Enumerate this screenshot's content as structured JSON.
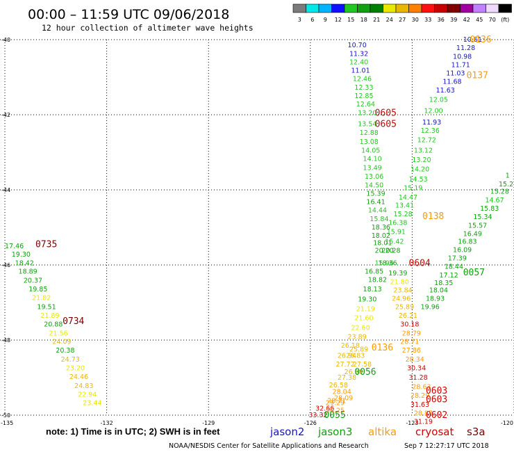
{
  "title": "00:00 – 11:59 UTC 09/06/2018",
  "subtitle": "12 hour collection of altimeter wave heights",
  "colorbar": {
    "labels": [
      "3",
      "6",
      "9",
      "12",
      "15",
      "18",
      "21",
      "24",
      "27",
      "30",
      "33",
      "36",
      "39",
      "42",
      "45",
      "70",
      "(ft)"
    ],
    "colors": [
      "#7b7b7b",
      "#00e8e8",
      "#00b4ff",
      "#1010ff",
      "#20c820",
      "#10a010",
      "#008000",
      "#e8e800",
      "#e8b800",
      "#ff7f00",
      "#ff1010",
      "#c80000",
      "#800000",
      "#a000a0",
      "#c080ff",
      "#f0d8ff",
      "#000000"
    ]
  },
  "note": "note:  1) Time is in UTC;  2) SWH is in feet",
  "satellites": [
    {
      "name": "jason2",
      "color": "#1414c8"
    },
    {
      "name": "jason3",
      "color": "#10a010"
    },
    {
      "name": "altika",
      "color": "#ff9a00"
    },
    {
      "name": "cryosat",
      "color": "#d20000"
    },
    {
      "name": "s3a",
      "color": "#7a0000"
    }
  ],
  "footer_left": "NOAA/NESDIS Center for Satellite Applications and Research",
  "footer_right": "Sep  7 12:27:17 UTC 2018",
  "chart_data": {
    "type": "scatter",
    "title": "00:00 – 11:59 UTC 09/06/2018",
    "xlabel": "",
    "ylabel": "",
    "xlim": [
      -135,
      -120
    ],
    "ylim": [
      -50,
      -40
    ],
    "grid": true,
    "x_ticks": [
      -135,
      -132,
      -129,
      -126,
      -123,
      -120
    ],
    "y_ticks": [
      -40,
      -42,
      -44,
      -46,
      -48,
      -50
    ],
    "x_tick_labels": [
      "-135",
      "-132",
      "-129",
      "-126",
      "-123",
      "-120"
    ],
    "y_tick_labels": [
      "-40",
      "-42",
      "-44",
      "-46",
      "-48",
      "-50"
    ],
    "passes": [
      {
        "label": "0136",
        "color": "#ff9a00",
        "x": -121.3,
        "y": -40.0
      },
      {
        "label": "0137",
        "color": "#ff9a00",
        "x": -121.4,
        "y": -40.95
      },
      {
        "label": "0605",
        "color": "#d20000",
        "x": -124.1,
        "y": -41.95
      },
      {
        "label": "0605",
        "color": "#d20000",
        "x": -124.1,
        "y": -42.25
      },
      {
        "label": "0138",
        "color": "#ff9a00",
        "x": -122.7,
        "y": -44.7
      },
      {
        "label": "0735",
        "color": "#7a0000",
        "x": -134.1,
        "y": -45.45
      },
      {
        "label": "0604",
        "color": "#d20000",
        "x": -123.1,
        "y": -45.95
      },
      {
        "label": "0057",
        "color": "#10a010",
        "x": -121.5,
        "y": -46.2
      },
      {
        "label": "0734",
        "color": "#7a0000",
        "x": -133.3,
        "y": -47.5
      },
      {
        "label": "0136",
        "color": "#ff9a00",
        "x": -124.2,
        "y": -48.2
      },
      {
        "label": "0056",
        "color": "#10a010",
        "x": -124.7,
        "y": -48.85
      },
      {
        "label": "0603",
        "color": "#d20000",
        "x": -122.6,
        "y": -49.35
      },
      {
        "label": "0603",
        "color": "#d20000",
        "x": -122.6,
        "y": -49.58
      },
      {
        "label": "0602",
        "color": "#d20000",
        "x": -122.6,
        "y": -50.0
      },
      {
        "label": "0055",
        "color": "#10a010",
        "x": -125.6,
        "y": -50.0
      }
    ],
    "points": [
      {
        "v": "10.61",
        "x": -121.5,
        "y": -40.0,
        "c": "#1414c8"
      },
      {
        "v": "11.28",
        "x": -121.7,
        "y": -40.22,
        "c": "#1414c8"
      },
      {
        "v": "10.98",
        "x": -121.8,
        "y": -40.45,
        "c": "#1414c8"
      },
      {
        "v": "11.71",
        "x": -121.85,
        "y": -40.68,
        "c": "#1414c8"
      },
      {
        "v": "11.03",
        "x": -122.0,
        "y": -40.9,
        "c": "#1414c8"
      },
      {
        "v": "11.68",
        "x": -122.1,
        "y": -41.12,
        "c": "#1414c8"
      },
      {
        "v": "11.63",
        "x": -122.3,
        "y": -41.35,
        "c": "#1414c8"
      },
      {
        "v": "12.05",
        "x": -122.5,
        "y": -41.6,
        "c": "#20c820"
      },
      {
        "v": "12.00",
        "x": -122.65,
        "y": -41.9,
        "c": "#20c820"
      },
      {
        "v": "11.93",
        "x": -122.7,
        "y": -42.2,
        "c": "#1414c8"
      },
      {
        "v": "12.36",
        "x": -122.75,
        "y": -42.43,
        "c": "#20c820"
      },
      {
        "v": "12.72",
        "x": -122.85,
        "y": -42.68,
        "c": "#20c820"
      },
      {
        "v": "13.12",
        "x": -122.95,
        "y": -42.95,
        "c": "#20c820"
      },
      {
        "v": "13.20",
        "x": -123.0,
        "y": -43.2,
        "c": "#20c820"
      },
      {
        "v": "14.20",
        "x": -123.05,
        "y": -43.45,
        "c": "#20c820"
      },
      {
        "v": "14.53",
        "x": -123.1,
        "y": -43.72,
        "c": "#20c820"
      },
      {
        "v": "15.19",
        "x": -123.25,
        "y": -43.95,
        "c": "#20c820"
      },
      {
        "v": "14.47",
        "x": -123.4,
        "y": -44.2,
        "c": "#20c820"
      },
      {
        "v": "13.41",
        "x": -123.5,
        "y": -44.42,
        "c": "#20c820"
      },
      {
        "v": "15.28",
        "x": -123.55,
        "y": -44.65,
        "c": "#20c820"
      },
      {
        "v": "16.38",
        "x": -123.7,
        "y": -44.88,
        "c": "#20c820"
      },
      {
        "v": "15.91",
        "x": -123.75,
        "y": -45.12,
        "c": "#20c820"
      },
      {
        "v": "15.42",
        "x": -123.8,
        "y": -45.38,
        "c": "#20c820"
      },
      {
        "v": "20.28",
        "x": -123.9,
        "y": -45.62,
        "c": "#10a010"
      },
      {
        "v": "10.70",
        "x": -124.9,
        "y": -40.15,
        "c": "#1414c8"
      },
      {
        "v": "11.32",
        "x": -124.85,
        "y": -40.38,
        "c": "#1414c8"
      },
      {
        "v": "12.40",
        "x": -124.85,
        "y": -40.6,
        "c": "#20c820"
      },
      {
        "v": "11.01",
        "x": -124.8,
        "y": -40.82,
        "c": "#1414c8"
      },
      {
        "v": "12.46",
        "x": -124.75,
        "y": -41.05,
        "c": "#20c820"
      },
      {
        "v": "12.33",
        "x": -124.7,
        "y": -41.28,
        "c": "#20c820"
      },
      {
        "v": "12.85",
        "x": -124.7,
        "y": -41.5,
        "c": "#20c820"
      },
      {
        "v": "12.64",
        "x": -124.65,
        "y": -41.72,
        "c": "#20c820"
      },
      {
        "v": "13.20",
        "x": -124.6,
        "y": -41.95,
        "c": "#20c820"
      },
      {
        "v": "13.54",
        "x": -124.6,
        "y": -42.25,
        "c": "#20c820"
      },
      {
        "v": "12.88",
        "x": -124.55,
        "y": -42.48,
        "c": "#20c820"
      },
      {
        "v": "13.08",
        "x": -124.55,
        "y": -42.72,
        "c": "#20c820"
      },
      {
        "v": "14.05",
        "x": -124.5,
        "y": -42.95,
        "c": "#20c820"
      },
      {
        "v": "14.10",
        "x": -124.45,
        "y": -43.18,
        "c": "#20c820"
      },
      {
        "v": "13.49",
        "x": -124.45,
        "y": -43.42,
        "c": "#20c820"
      },
      {
        "v": "13.06",
        "x": -124.4,
        "y": -43.65,
        "c": "#20c820"
      },
      {
        "v": "14.50",
        "x": -124.4,
        "y": -43.88,
        "c": "#20c820"
      },
      {
        "v": "15.39",
        "x": -124.35,
        "y": -44.1,
        "c": "#10a010"
      },
      {
        "v": "16.41",
        "x": -124.35,
        "y": -44.32,
        "c": "#10a010"
      },
      {
        "v": "14.44",
        "x": -124.3,
        "y": -44.55,
        "c": "#20c820"
      },
      {
        "v": "15.84",
        "x": -124.25,
        "y": -44.78,
        "c": "#20c820"
      },
      {
        "v": "18.36",
        "x": -124.2,
        "y": -45.0,
        "c": "#10a010"
      },
      {
        "v": "18.02",
        "x": -124.2,
        "y": -45.22,
        "c": "#10a010"
      },
      {
        "v": "18.01",
        "x": -124.15,
        "y": -45.42,
        "c": "#10a010"
      },
      {
        "v": "20.20",
        "x": -124.1,
        "y": -45.62,
        "c": "#10a010"
      },
      {
        "v": "15.96",
        "x": -124.1,
        "y": -45.95,
        "c": "#20c820"
      },
      {
        "v": "18.36",
        "x": -124.0,
        "y": -45.95,
        "c": "#10a010"
      },
      {
        "v": "16.85",
        "x": -124.4,
        "y": -46.18,
        "c": "#10a010"
      },
      {
        "v": "18.82",
        "x": -124.3,
        "y": -46.4,
        "c": "#10a010"
      },
      {
        "v": "18.13",
        "x": -124.45,
        "y": -46.65,
        "c": "#10a010"
      },
      {
        "v": "19.30",
        "x": -124.6,
        "y": -46.92,
        "c": "#10a010"
      },
      {
        "v": "21.19",
        "x": -124.65,
        "y": -47.18,
        "c": "#e8e800"
      },
      {
        "v": "21.60",
        "x": -124.7,
        "y": -47.42,
        "c": "#e8e800"
      },
      {
        "v": "22.60",
        "x": -124.8,
        "y": -47.68,
        "c": "#e8e800"
      },
      {
        "v": "23.89",
        "x": -124.9,
        "y": -47.92,
        "c": "#e8b800"
      },
      {
        "v": "26.18",
        "x": -125.1,
        "y": -48.15,
        "c": "#e8b800"
      },
      {
        "v": "25.89",
        "x": -124.85,
        "y": -48.25,
        "c": "#e8b800"
      },
      {
        "v": "26.94",
        "x": -125.2,
        "y": -48.42,
        "c": "#e8b800"
      },
      {
        "v": "26.83",
        "x": -124.95,
        "y": -48.42,
        "c": "#e8b800"
      },
      {
        "v": "27.58",
        "x": -124.75,
        "y": -48.65,
        "c": "#e8b800"
      },
      {
        "v": "27.72",
        "x": -125.25,
        "y": -48.65,
        "c": "#e8b800"
      },
      {
        "v": "26.98",
        "x": -125.0,
        "y": -48.85,
        "c": "#e8b800"
      },
      {
        "v": "27.38",
        "x": -125.2,
        "y": -49.0,
        "c": "#e8b800"
      },
      {
        "v": "26.58",
        "x": -125.45,
        "y": -49.2,
        "c": "#e8b800"
      },
      {
        "v": "28.04",
        "x": -125.35,
        "y": -49.38,
        "c": "#ff9a00"
      },
      {
        "v": "28.09",
        "x": -125.3,
        "y": -49.55,
        "c": "#ff9a00"
      },
      {
        "v": "28.71",
        "x": -125.5,
        "y": -49.62,
        "c": "#ff9a00"
      },
      {
        "v": "29.29",
        "x": -125.55,
        "y": -49.68,
        "c": "#ff9a00"
      },
      {
        "v": "32.66",
        "x": -125.85,
        "y": -49.82,
        "c": "#d20000"
      },
      {
        "v": "30.25",
        "x": -125.55,
        "y": -49.88,
        "c": "#ff9a00"
      },
      {
        "v": "33.32",
        "x": -126.05,
        "y": -50.0,
        "c": "#d20000"
      },
      {
        "v": "25.89",
        "x": -123.5,
        "y": -47.12,
        "c": "#e8b800"
      },
      {
        "v": "26.21",
        "x": -123.4,
        "y": -47.35,
        "c": "#e8b800"
      },
      {
        "v": "30.18",
        "x": -123.35,
        "y": -47.58,
        "c": "#d20000"
      },
      {
        "v": "28.79",
        "x": -123.3,
        "y": -47.82,
        "c": "#ff9a00"
      },
      {
        "v": "28.71",
        "x": -123.35,
        "y": -48.05,
        "c": "#ff9a00"
      },
      {
        "v": "27.86",
        "x": -123.3,
        "y": -48.28,
        "c": "#ff9a00"
      },
      {
        "v": "28.34",
        "x": -123.2,
        "y": -48.52,
        "c": "#ff9a00"
      },
      {
        "v": "30.34",
        "x": -123.15,
        "y": -48.75,
        "c": "#d20000"
      },
      {
        "v": "31.28",
        "x": -123.1,
        "y": -49.0,
        "c": "#d20000"
      },
      {
        "v": "28.63",
        "x": -123.0,
        "y": -49.25,
        "c": "#ff9a00"
      },
      {
        "v": "28.29",
        "x": -123.05,
        "y": -49.48,
        "c": "#ff9a00"
      },
      {
        "v": "31.63",
        "x": -123.05,
        "y": -49.72,
        "c": "#d20000"
      },
      {
        "v": "28.87",
        "x": -122.95,
        "y": -49.95,
        "c": "#ff9a00"
      },
      {
        "v": "31.19",
        "x": -122.95,
        "y": -50.18,
        "c": "#d20000"
      },
      {
        "v": "24.96",
        "x": -123.6,
        "y": -46.9,
        "c": "#e8b800"
      },
      {
        "v": "23.84",
        "x": -123.55,
        "y": -46.68,
        "c": "#e8b800"
      },
      {
        "v": "21.80",
        "x": -123.65,
        "y": -46.45,
        "c": "#e8e800"
      },
      {
        "v": "19.39",
        "x": -123.7,
        "y": -46.22,
        "c": "#10a010"
      },
      {
        "v": "19.96",
        "x": -122.75,
        "y": -47.12,
        "c": "#10a010"
      },
      {
        "v": "18.93",
        "x": -122.6,
        "y": -46.9,
        "c": "#10a010"
      },
      {
        "v": "18.04",
        "x": -122.5,
        "y": -46.68,
        "c": "#10a010"
      },
      {
        "v": "18.35",
        "x": -122.35,
        "y": -46.48,
        "c": "#10a010"
      },
      {
        "v": "17.12",
        "x": -122.2,
        "y": -46.28,
        "c": "#10a010"
      },
      {
        "v": "18.44",
        "x": -122.05,
        "y": -46.05,
        "c": "#10a010"
      },
      {
        "v": "17.39",
        "x": -121.95,
        "y": -45.82,
        "c": "#10a010"
      },
      {
        "v": "16.09",
        "x": -121.8,
        "y": -45.6,
        "c": "#10a010"
      },
      {
        "v": "16.83",
        "x": -121.65,
        "y": -45.38,
        "c": "#10a010"
      },
      {
        "v": "16.49",
        "x": -121.5,
        "y": -45.18,
        "c": "#10a010"
      },
      {
        "v": "15.57",
        "x": -121.35,
        "y": -44.95,
        "c": "#10a010"
      },
      {
        "v": "15.34",
        "x": -121.2,
        "y": -44.72,
        "c": "#10a010"
      },
      {
        "v": "15.83",
        "x": -121.0,
        "y": -44.5,
        "c": "#10a010"
      },
      {
        "v": "14.67",
        "x": -120.85,
        "y": -44.28,
        "c": "#20c820"
      },
      {
        "v": "15.28",
        "x": -120.7,
        "y": -44.05,
        "c": "#10a010"
      },
      {
        "v": "15.2",
        "x": -120.45,
        "y": -43.85,
        "c": "#10a010"
      },
      {
        "v": "1",
        "x": -120.25,
        "y": -43.62,
        "c": "#10a010"
      },
      {
        "v": "17.46",
        "x": -135.0,
        "y": -45.5,
        "c": "#10a010"
      },
      {
        "v": "19.30",
        "x": -134.8,
        "y": -45.72,
        "c": "#10a010"
      },
      {
        "v": "18.42",
        "x": -134.7,
        "y": -45.95,
        "c": "#10a010"
      },
      {
        "v": "18.89",
        "x": -134.6,
        "y": -46.18,
        "c": "#10a010"
      },
      {
        "v": "20.37",
        "x": -134.45,
        "y": -46.42,
        "c": "#10a010"
      },
      {
        "v": "19.85",
        "x": -134.3,
        "y": -46.65,
        "c": "#10a010"
      },
      {
        "v": "21.82",
        "x": -134.2,
        "y": -46.88,
        "c": "#e8e800"
      },
      {
        "v": "19.51",
        "x": -134.05,
        "y": -47.12,
        "c": "#10a010"
      },
      {
        "v": "21.89",
        "x": -133.95,
        "y": -47.35,
        "c": "#e8e800"
      },
      {
        "v": "20.88",
        "x": -133.85,
        "y": -47.58,
        "c": "#10a010"
      },
      {
        "v": "21.56",
        "x": -133.7,
        "y": -47.82,
        "c": "#e8e800"
      },
      {
        "v": "24.09",
        "x": -133.6,
        "y": -48.05,
        "c": "#e8b800"
      },
      {
        "v": "20.38",
        "x": -133.5,
        "y": -48.28,
        "c": "#10a010"
      },
      {
        "v": "24.73",
        "x": -133.35,
        "y": -48.52,
        "c": "#e8b800"
      },
      {
        "v": "23.20",
        "x": -133.2,
        "y": -48.75,
        "c": "#e8e800"
      },
      {
        "v": "24.46",
        "x": -133.1,
        "y": -48.98,
        "c": "#e8b800"
      },
      {
        "v": "24.83",
        "x": -132.95,
        "y": -49.22,
        "c": "#e8b800"
      },
      {
        "v": "22.94",
        "x": -132.85,
        "y": -49.45,
        "c": "#e8e800"
      },
      {
        "v": "23.44",
        "x": -132.7,
        "y": -49.68,
        "c": "#e8e800"
      }
    ]
  }
}
